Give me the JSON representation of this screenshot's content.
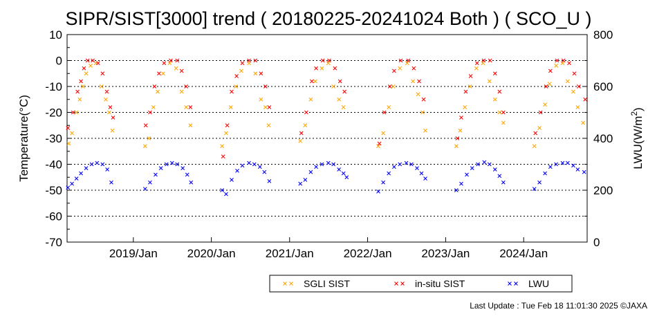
{
  "chart_data": {
    "type": "scatter",
    "title": "SIPR/SIST[3000] trend ( 20180225-20241024 Both ) ( SCO_U )",
    "ylabel": "Temperature(°C)",
    "y2label_main": "LWU(W/m",
    "y2label_sup": "2",
    "y2label_end": ")",
    "ylim": [
      -70,
      10
    ],
    "y2lim": [
      0,
      800
    ],
    "xlim": [
      "2018-02-25",
      "2024-10-24"
    ],
    "yticks": [
      "10",
      "0",
      "-10",
      "-20",
      "-30",
      "-40",
      "-50",
      "-60",
      "-70"
    ],
    "y2ticks": [
      "800",
      "600",
      "400",
      "200",
      "0"
    ],
    "xticks": [
      {
        "date": "2019-01-01",
        "label": "2019/Jan"
      },
      {
        "date": "2020-01-01",
        "label": "2020/Jan"
      },
      {
        "date": "2021-01-01",
        "label": "2021/Jan"
      },
      {
        "date": "2022-01-01",
        "label": "2022/Jan"
      },
      {
        "date": "2023-01-01",
        "label": "2023/Jan"
      },
      {
        "date": "2024-01-01",
        "label": "2024/Jan"
      }
    ],
    "grid": "dotted horizontal",
    "legend_position": "bottom-right",
    "series": [
      {
        "name": "SGLI SIST",
        "color": "#ffa500",
        "axis": "left",
        "marker": "x",
        "points": [
          [
            "2018-03-05",
            -32
          ],
          [
            "2018-03-20",
            -28
          ],
          [
            "2018-04-10",
            -20
          ],
          [
            "2018-04-25",
            -15
          ],
          [
            "2018-05-10",
            -10
          ],
          [
            "2018-05-25",
            -5
          ],
          [
            "2018-06-15",
            -2
          ],
          [
            "2018-07-10",
            -1
          ],
          [
            "2018-08-05",
            -10
          ],
          [
            "2018-08-25",
            -15
          ],
          [
            "2018-09-10",
            -20
          ],
          [
            "2018-09-25",
            -27
          ],
          [
            "2019-02-25",
            -33
          ],
          [
            "2019-03-15",
            -30
          ],
          [
            "2019-04-05",
            -18
          ],
          [
            "2019-04-25",
            -12
          ],
          [
            "2019-05-20",
            -5
          ],
          [
            "2019-06-20",
            -1
          ],
          [
            "2019-07-20",
            -3
          ],
          [
            "2019-08-15",
            -12
          ],
          [
            "2019-09-05",
            -18
          ],
          [
            "2019-09-25",
            -25
          ],
          [
            "2020-02-20",
            -33
          ],
          [
            "2020-03-10",
            -28
          ],
          [
            "2020-04-01",
            -18
          ],
          [
            "2020-04-25",
            -10
          ],
          [
            "2020-05-20",
            -4
          ],
          [
            "2020-06-25",
            -1
          ],
          [
            "2020-07-25",
            -5
          ],
          [
            "2020-08-20",
            -15
          ],
          [
            "2020-09-10",
            -18
          ],
          [
            "2020-09-25",
            -25
          ],
          [
            "2021-02-20",
            -31
          ],
          [
            "2021-03-15",
            -25
          ],
          [
            "2021-04-10",
            -15
          ],
          [
            "2021-05-01",
            -8
          ],
          [
            "2021-06-01",
            -3
          ],
          [
            "2021-07-01",
            -1
          ],
          [
            "2021-07-25",
            -10
          ],
          [
            "2021-08-20",
            -15
          ],
          [
            "2021-09-10",
            -18
          ],
          [
            "2022-02-20",
            -33
          ],
          [
            "2022-03-15",
            -28
          ],
          [
            "2022-04-10",
            -18
          ],
          [
            "2022-05-01",
            -10
          ],
          [
            "2022-06-01",
            -3
          ],
          [
            "2022-07-05",
            -1
          ],
          [
            "2022-08-01",
            -8
          ],
          [
            "2022-08-25",
            -13
          ],
          [
            "2022-09-15",
            -20
          ],
          [
            "2022-09-28",
            -27
          ],
          [
            "2023-02-20",
            -33
          ],
          [
            "2023-03-10",
            -27
          ],
          [
            "2023-04-01",
            -18
          ],
          [
            "2023-04-25",
            -10
          ],
          [
            "2023-05-25",
            -3
          ],
          [
            "2023-06-25",
            -1
          ],
          [
            "2023-07-25",
            -8
          ],
          [
            "2023-08-20",
            -15
          ],
          [
            "2023-09-10",
            -20
          ],
          [
            "2023-09-28",
            -24
          ],
          [
            "2024-02-20",
            -33
          ],
          [
            "2024-03-15",
            -26
          ],
          [
            "2024-04-10",
            -17
          ],
          [
            "2024-05-01",
            -9
          ],
          [
            "2024-06-01",
            -2
          ],
          [
            "2024-07-01",
            -1
          ],
          [
            "2024-07-25",
            -8
          ],
          [
            "2024-08-20",
            -12
          ],
          [
            "2024-09-10",
            -18
          ],
          [
            "2024-10-05",
            -24
          ]
        ]
      },
      {
        "name": "in-situ SIST",
        "color": "#ff0000",
        "axis": "left",
        "marker": "x",
        "points": [
          [
            "2018-03-01",
            -26
          ],
          [
            "2018-03-25",
            -20
          ],
          [
            "2018-04-15",
            -12
          ],
          [
            "2018-05-01",
            -8
          ],
          [
            "2018-05-15",
            -3
          ],
          [
            "2018-06-01",
            0
          ],
          [
            "2018-06-25",
            0
          ],
          [
            "2018-07-20",
            -1
          ],
          [
            "2018-08-10",
            -5
          ],
          [
            "2018-08-30",
            -12
          ],
          [
            "2018-09-15",
            -18
          ],
          [
            "2018-09-28",
            -22
          ],
          [
            "2019-02-28",
            -25
          ],
          [
            "2019-03-20",
            -20
          ],
          [
            "2019-04-10",
            -10
          ],
          [
            "2019-05-01",
            -5
          ],
          [
            "2019-05-25",
            -1
          ],
          [
            "2019-06-25",
            0
          ],
          [
            "2019-07-25",
            0
          ],
          [
            "2019-08-15",
            -4
          ],
          [
            "2019-09-05",
            -10
          ],
          [
            "2019-09-25",
            -18
          ],
          [
            "2020-02-25",
            -37
          ],
          [
            "2020-03-15",
            -25
          ],
          [
            "2020-04-05",
            -12
          ],
          [
            "2020-04-28",
            -6
          ],
          [
            "2020-05-25",
            -1
          ],
          [
            "2020-06-25",
            0
          ],
          [
            "2020-07-25",
            0
          ],
          [
            "2020-08-20",
            -5
          ],
          [
            "2020-09-10",
            -10
          ],
          [
            "2020-09-28",
            -18
          ],
          [
            "2021-02-25",
            -28
          ],
          [
            "2021-03-20",
            -20
          ],
          [
            "2021-04-15",
            -8
          ],
          [
            "2021-05-05",
            -3
          ],
          [
            "2021-06-05",
            0
          ],
          [
            "2021-07-05",
            0
          ],
          [
            "2021-08-01",
            -3
          ],
          [
            "2021-08-25",
            -8
          ],
          [
            "2021-09-15",
            -12
          ],
          [
            "2022-02-25",
            -32
          ],
          [
            "2022-03-20",
            -20
          ],
          [
            "2022-04-15",
            -10
          ],
          [
            "2022-05-05",
            -4
          ],
          [
            "2022-06-05",
            0
          ],
          [
            "2022-07-10",
            0
          ],
          [
            "2022-08-05",
            -3
          ],
          [
            "2022-08-30",
            -8
          ],
          [
            "2022-09-20",
            -15
          ],
          [
            "2023-02-25",
            -30
          ],
          [
            "2023-03-15",
            -22
          ],
          [
            "2023-04-05",
            -12
          ],
          [
            "2023-04-28",
            -6
          ],
          [
            "2023-05-28",
            -1
          ],
          [
            "2023-06-28",
            0
          ],
          [
            "2023-07-28",
            0
          ],
          [
            "2023-08-20",
            -5
          ],
          [
            "2023-09-10",
            -12
          ],
          [
            "2023-09-28",
            -20
          ],
          [
            "2024-02-25",
            -28
          ],
          [
            "2024-03-20",
            -20
          ],
          [
            "2024-04-15",
            -10
          ],
          [
            "2024-05-05",
            -4
          ],
          [
            "2024-06-05",
            0
          ],
          [
            "2024-07-05",
            0
          ],
          [
            "2024-08-01",
            -1
          ],
          [
            "2024-08-25",
            -5
          ],
          [
            "2024-09-15",
            -10
          ],
          [
            "2024-10-15",
            -15
          ]
        ]
      },
      {
        "name": "LWU",
        "color": "#0000ff",
        "axis": "right",
        "marker": "x",
        "points": [
          [
            "2018-03-01",
            210
          ],
          [
            "2018-03-20",
            225
          ],
          [
            "2018-04-10",
            245
          ],
          [
            "2018-05-01",
            265
          ],
          [
            "2018-05-25",
            285
          ],
          [
            "2018-06-20",
            300
          ],
          [
            "2018-07-15",
            305
          ],
          [
            "2018-08-10",
            300
          ],
          [
            "2018-09-01",
            280
          ],
          [
            "2018-09-20",
            230
          ],
          [
            "2019-02-25",
            205
          ],
          [
            "2019-03-20",
            230
          ],
          [
            "2019-04-15",
            260
          ],
          [
            "2019-05-10",
            285
          ],
          [
            "2019-06-05",
            300
          ],
          [
            "2019-07-01",
            305
          ],
          [
            "2019-07-25",
            300
          ],
          [
            "2019-08-20",
            285
          ],
          [
            "2019-09-10",
            260
          ],
          [
            "2019-09-28",
            230
          ],
          [
            "2020-02-20",
            200
          ],
          [
            "2020-03-10",
            185
          ],
          [
            "2020-04-05",
            240
          ],
          [
            "2020-05-01",
            275
          ],
          [
            "2020-05-25",
            295
          ],
          [
            "2020-06-25",
            305
          ],
          [
            "2020-07-20",
            300
          ],
          [
            "2020-08-15",
            290
          ],
          [
            "2020-09-05",
            270
          ],
          [
            "2020-09-28",
            235
          ],
          [
            "2021-02-20",
            225
          ],
          [
            "2021-03-15",
            240
          ],
          [
            "2021-04-10",
            270
          ],
          [
            "2021-05-05",
            290
          ],
          [
            "2021-06-01",
            300
          ],
          [
            "2021-07-01",
            305
          ],
          [
            "2021-07-25",
            300
          ],
          [
            "2021-08-20",
            280
          ],
          [
            "2021-09-10",
            265
          ],
          [
            "2021-09-25",
            250
          ],
          [
            "2022-02-20",
            195
          ],
          [
            "2022-03-15",
            230
          ],
          [
            "2022-04-10",
            265
          ],
          [
            "2022-05-05",
            290
          ],
          [
            "2022-06-01",
            300
          ],
          [
            "2022-07-01",
            305
          ],
          [
            "2022-07-25",
            300
          ],
          [
            "2022-08-20",
            285
          ],
          [
            "2022-09-10",
            265
          ],
          [
            "2022-09-28",
            245
          ],
          [
            "2023-02-20",
            200
          ],
          [
            "2023-03-15",
            225
          ],
          [
            "2023-04-10",
            260
          ],
          [
            "2023-05-05",
            285
          ],
          [
            "2023-06-01",
            300
          ],
          [
            "2023-07-01",
            308
          ],
          [
            "2023-07-25",
            300
          ],
          [
            "2023-08-20",
            280
          ],
          [
            "2023-09-10",
            255
          ],
          [
            "2023-09-28",
            230
          ],
          [
            "2024-02-20",
            205
          ],
          [
            "2024-03-15",
            230
          ],
          [
            "2024-04-10",
            265
          ],
          [
            "2024-05-05",
            290
          ],
          [
            "2024-06-01",
            300
          ],
          [
            "2024-07-01",
            305
          ],
          [
            "2024-07-25",
            305
          ],
          [
            "2024-08-20",
            295
          ],
          [
            "2024-09-10",
            280
          ],
          [
            "2024-10-10",
            270
          ]
        ]
      }
    ]
  },
  "footer": "Last Update : Tue Feb 18 11:01:30 2025  ©JAXA"
}
